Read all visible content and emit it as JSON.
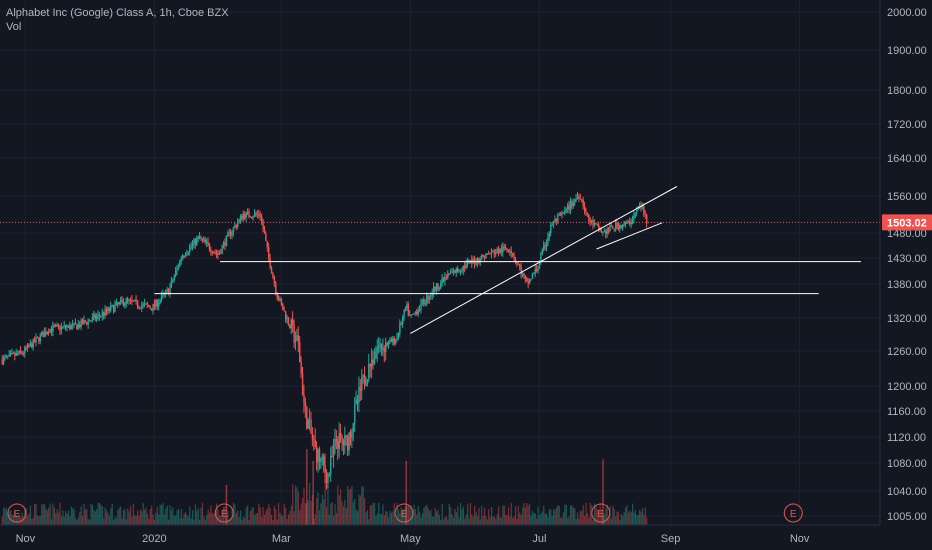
{
  "header": {
    "symbol_title": "Alphabet Inc (Google) Class A, 1h, Cboe BZX",
    "volume_label": "Vol"
  },
  "colors": {
    "background": "#131722",
    "up": "#26a69a",
    "down": "#ef5350",
    "grid": "#1e222d",
    "axis_text": "#b2b5be",
    "drawings": "#ffffff",
    "last_price": "#ef5350"
  },
  "chart_data": {
    "type": "candlestick",
    "title": "Alphabet Inc (Google) Class A, 1h, Cboe BZX",
    "x_ticks": [
      "Nov",
      "2020",
      "Mar",
      "May",
      "Jul",
      "Sep",
      "Nov"
    ],
    "y_ticks": [
      2000,
      1900,
      1800,
      1720,
      1640,
      1560,
      1480,
      1430,
      1380,
      1320,
      1260,
      1200,
      1160,
      1120,
      1080,
      1040,
      1005
    ],
    "y_tick_labels": [
      "2000.00",
      "1900.00",
      "1800.00",
      "1720.00",
      "1640.00",
      "1560.00",
      "1480.00",
      "1430.00",
      "1380.00",
      "1320.00",
      "1260.00",
      "1200.00",
      "1160.00",
      "1120.00",
      "1080.00",
      "1040.00",
      "1005.00"
    ],
    "ylim": [
      990,
      2060
    ],
    "price_path": [
      [
        "2019-10-21",
        1245
      ],
      [
        "2019-10-31",
        1258
      ],
      [
        "2019-11-12",
        1300
      ],
      [
        "2019-11-25",
        1305
      ],
      [
        "2019-12-05",
        1322
      ],
      [
        "2019-12-18",
        1350
      ],
      [
        "2019-12-31",
        1338
      ],
      [
        "2020-01-08",
        1370
      ],
      [
        "2020-01-14",
        1435
      ],
      [
        "2020-01-22",
        1470
      ],
      [
        "2020-01-31",
        1437
      ],
      [
        "2020-02-05",
        1475
      ],
      [
        "2020-02-12",
        1520
      ],
      [
        "2020-02-20",
        1520
      ],
      [
        "2020-02-24",
        1430
      ],
      [
        "2020-02-28",
        1360
      ],
      [
        "2020-03-04",
        1315
      ],
      [
        "2020-03-09",
        1270
      ],
      [
        "2020-03-12",
        1160
      ],
      [
        "2020-03-17",
        1100
      ],
      [
        "2020-03-23",
        1060
      ],
      [
        "2020-03-27",
        1115
      ],
      [
        "2020-04-01",
        1110
      ],
      [
        "2020-04-08",
        1200
      ],
      [
        "2020-04-15",
        1265
      ],
      [
        "2020-04-24",
        1280
      ],
      [
        "2020-04-29",
        1340
      ],
      [
        "2020-05-01",
        1320
      ],
      [
        "2020-05-12",
        1370
      ],
      [
        "2020-05-20",
        1400
      ],
      [
        "2020-05-29",
        1420
      ],
      [
        "2020-06-08",
        1440
      ],
      [
        "2020-06-17",
        1450
      ],
      [
        "2020-06-25",
        1380
      ],
      [
        "2020-06-30",
        1410
      ],
      [
        "2020-07-07",
        1500
      ],
      [
        "2020-07-13",
        1525
      ],
      [
        "2020-07-20",
        1565
      ],
      [
        "2020-07-24",
        1510
      ],
      [
        "2020-07-31",
        1480
      ],
      [
        "2020-08-06",
        1495
      ],
      [
        "2020-08-12",
        1500
      ],
      [
        "2020-08-18",
        1540
      ],
      [
        "2020-08-21",
        1503
      ]
    ],
    "last_price": 1503.02,
    "last_price_label": "1503.02",
    "horizontal_lines": [
      {
        "price": 1423,
        "from": "2020-02-01",
        "to": "2020-11-30"
      },
      {
        "price": 1363,
        "from": "2020-01-01",
        "to": "2020-11-10"
      }
    ],
    "trend_lines": [
      {
        "from": [
          "2020-05-01",
          1292
        ],
        "to": [
          "2020-09-04",
          1580
        ]
      },
      {
        "from": [
          "2020-07-28",
          1448
        ],
        "to": [
          "2020-08-28",
          1502
        ]
      }
    ],
    "earnings_dates": [
      "2019-10-28",
      "2020-02-03",
      "2020-04-28",
      "2020-07-30",
      "2020-10-29"
    ],
    "earnings_label": "E",
    "volume_spikes": [
      {
        "date": "2020-03-13",
        "level": 0.95
      },
      {
        "date": "2020-03-16",
        "level": 0.8
      },
      {
        "date": "2020-04-29",
        "level": 0.8
      },
      {
        "date": "2020-07-31",
        "level": 0.82
      },
      {
        "date": "2020-02-04",
        "level": 0.5
      }
    ],
    "x_range": [
      "2019-10-20",
      "2020-12-09"
    ],
    "grid": true
  }
}
